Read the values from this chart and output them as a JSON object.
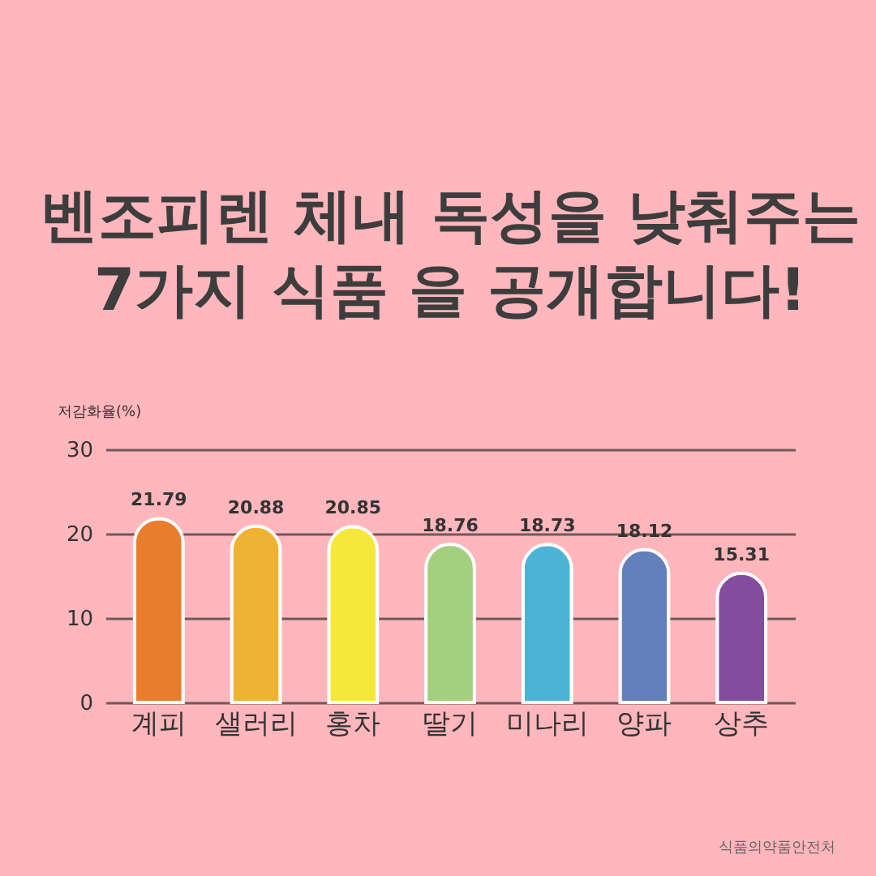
{
  "chart_data": {
    "type": "bar",
    "title": "벤조피렌 체내 독성을 낮춰주는",
    "subtitle": "7가지 식품 을 공개합니다!",
    "ylabel": "저감화율(%)",
    "categories": [
      "계피",
      "샐러리",
      "홍차",
      "딸기",
      "미나리",
      "양파",
      "상추"
    ],
    "values": [
      21.79,
      20.88,
      20.85,
      18.76,
      18.73,
      18.12,
      15.31
    ],
    "colors": [
      "#e87d2e",
      "#f0b232",
      "#f6e83a",
      "#a3cf7e",
      "#4db3d6",
      "#6480bc",
      "#844c9e"
    ],
    "ylim": [
      0,
      30
    ],
    "yticks": [
      0,
      10,
      20,
      30
    ],
    "grid": "y",
    "data_labels": true,
    "annotations": [
      "식품의약품안전처"
    ]
  }
}
